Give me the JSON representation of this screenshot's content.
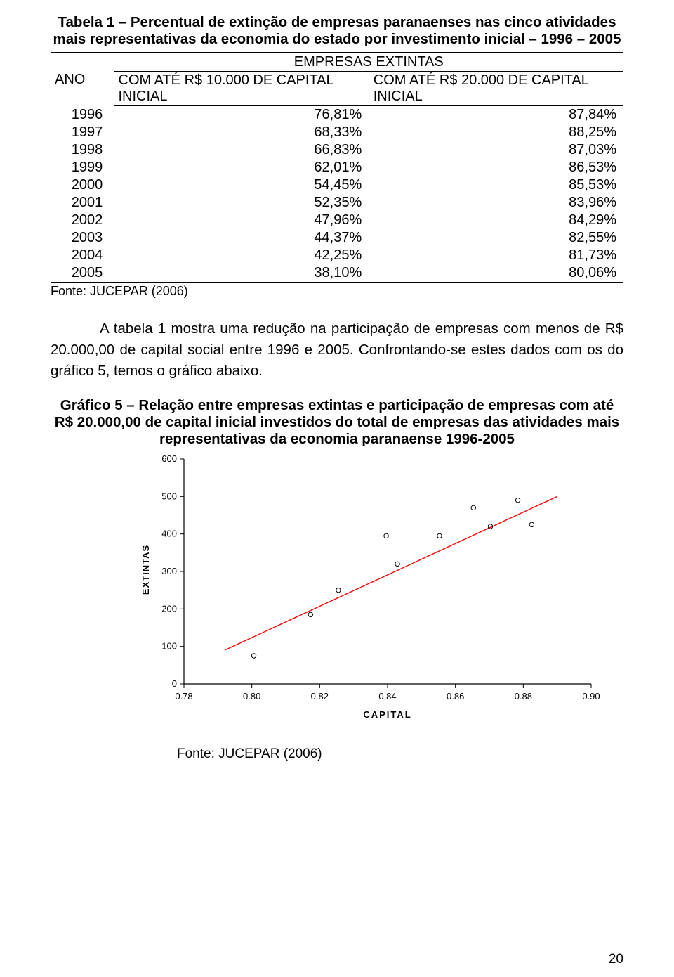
{
  "table": {
    "title": "Tabela 1 – Percentual de extinção de empresas paranaenses nas cinco atividades mais representativas da economia do estado por investimento inicial – 1996 – 2005",
    "header_ano": "ANO",
    "header_emp": "EMPRESAS EXTINTAS",
    "col1": "COM ATÉ R$ 10.000 DE CAPITAL INICIAL",
    "col2": "COM ATÉ R$ 20.000 DE CAPITAL INICIAL",
    "rows": [
      {
        "year": "1996",
        "v1": "76,81%",
        "v2": "87,84%"
      },
      {
        "year": "1997",
        "v1": "68,33%",
        "v2": "88,25%"
      },
      {
        "year": "1998",
        "v1": "66,83%",
        "v2": "87,03%"
      },
      {
        "year": "1999",
        "v1": "62,01%",
        "v2": "86,53%"
      },
      {
        "year": "2000",
        "v1": "54,45%",
        "v2": "85,53%"
      },
      {
        "year": "2001",
        "v1": "52,35%",
        "v2": "83,96%"
      },
      {
        "year": "2002",
        "v1": "47,96%",
        "v2": "84,29%"
      },
      {
        "year": "2003",
        "v1": "44,37%",
        "v2": "82,55%"
      },
      {
        "year": "2004",
        "v1": "42,25%",
        "v2": "81,73%"
      },
      {
        "year": "2005",
        "v1": "38,10%",
        "v2": "80,06%"
      }
    ],
    "fonte": "Fonte: JUCEPAR (2006)"
  },
  "paragraph": "A tabela 1 mostra uma redução na participação de empresas com menos de R$ 20.000,00 de capital social entre 1996 e 2005. Confrontando-se estes dados com os do gráfico 5, temos o gráfico abaixo.",
  "chart": {
    "title": "Gráfico 5 – Relação entre empresas extintas e participação de empresas com até R$ 20.000,00 de capital inicial investidos do total de empresas das atividades mais representativas da economia paranaense 1996-2005",
    "type": "scatter",
    "ylabel": "EXTINTAS",
    "xlabel": "CAPITAL",
    "xlim": [
      0.78,
      0.9
    ],
    "ylim": [
      0,
      600
    ],
    "xticks": [
      0.78,
      0.8,
      0.82,
      0.84,
      0.86,
      0.88,
      0.9
    ],
    "yticks": [
      0,
      100,
      200,
      300,
      400,
      500,
      600
    ],
    "points": [
      {
        "x": 0.8006,
        "y": 75
      },
      {
        "x": 0.8173,
        "y": 185
      },
      {
        "x": 0.8255,
        "y": 250
      },
      {
        "x": 0.8429,
        "y": 320
      },
      {
        "x": 0.8396,
        "y": 395
      },
      {
        "x": 0.8553,
        "y": 395
      },
      {
        "x": 0.8653,
        "y": 470
      },
      {
        "x": 0.8703,
        "y": 420
      },
      {
        "x": 0.8825,
        "y": 425
      },
      {
        "x": 0.8784,
        "y": 490
      }
    ],
    "line": {
      "x1": 0.792,
      "y1": 90,
      "x2": 0.89,
      "y2": 500
    },
    "plot_bg": "#ffffff",
    "axis_color": "#000000",
    "point_color": "#000000",
    "line_color": "#ff0000",
    "tick_fontsize": 13,
    "label_fontsize": 13,
    "fonte": "Fonte: JUCEPAR (2006)"
  },
  "page_number": "20"
}
